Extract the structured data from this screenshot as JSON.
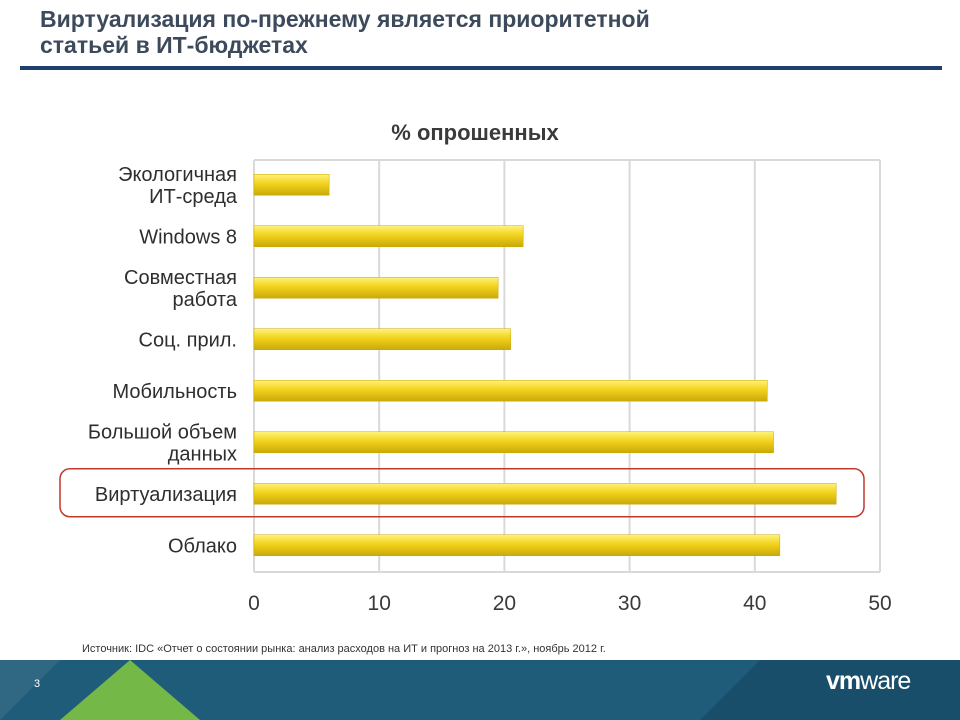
{
  "slide": {
    "title_line1": "Виртуализация по-прежнему является приоритетной",
    "title_line2": "статьей в ИТ-бюджетах",
    "source": "Источник: IDC «Отчет о состоянии рынка: анализ расходов на ИТ и прогноз на 2013 г.», ноябрь 2012 г.",
    "page_number": "3",
    "logo_bold": "vm",
    "logo_thin": "ware"
  },
  "colors": {
    "bar": "#f2d21c",
    "bar_dark": "#c9a908",
    "bar_light": "#fff27a",
    "highlight": "#c0392b",
    "grid": "#d9d9d9",
    "footer": "#1f5c7a",
    "footer_accent": "#7dc242"
  },
  "chart_data": {
    "type": "bar",
    "orientation": "horizontal",
    "title": "% опрошенных",
    "categories": [
      [
        "Экологичная",
        "ИТ-среда"
      ],
      [
        "Windows 8"
      ],
      [
        "Совместная",
        "работа"
      ],
      [
        "Соц. прил."
      ],
      [
        "Мобильность"
      ],
      [
        "Большой объем",
        "данных"
      ],
      [
        "Виртуализация"
      ],
      [
        "Облако"
      ]
    ],
    "values": [
      6,
      21.5,
      19.5,
      20.5,
      41,
      41.5,
      46.5,
      42
    ],
    "highlighted_category_index": 6,
    "xlim": [
      0,
      50
    ],
    "xticks": [
      0,
      10,
      20,
      30,
      40,
      50
    ],
    "xlabel": "",
    "ylabel": "",
    "grid": true
  }
}
